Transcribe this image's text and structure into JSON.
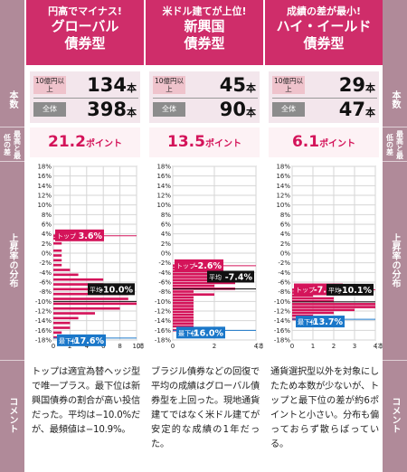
{
  "side_labels": {
    "left": [
      "本数",
      "最高と最低の差",
      "上昇率の分布",
      "コメント"
    ],
    "right": [
      "本数",
      "最高と最低の差",
      "上昇率の分布",
      "コメント"
    ]
  },
  "count_labels": {
    "over_1billion": "10億円以上",
    "all": "全体"
  },
  "unit_hon": "本",
  "unit_point": "ポイント",
  "columns": [
    {
      "headline": "円高でマイナス!",
      "title_line1": "グローバル",
      "title_line2": "債券型",
      "count_over": "134",
      "count_all": "398",
      "diff": "21.2",
      "comment": "トップは適宜為替ヘッジ型で唯一プラス。最下位は新興国債券の割合が高い投信だった。平均は−10.0%だが、最頻値は−10.9%。"
    },
    {
      "headline": "米ドル建てが上位!",
      "title_line1": "新興国",
      "title_line2": "債券型",
      "count_over": "45",
      "count_all": "90",
      "diff": "13.5",
      "comment": "ブラジル債券などの回復で平均の成績はグローバル債券型を上回った。現地通貨建てではなく米ドル建てが安定的な成績の1年だった。"
    },
    {
      "headline": "成績の差が最小!",
      "title_line1": "ハイ・イールド",
      "title_line2": "債券型",
      "count_over": "29",
      "count_all": "47",
      "diff": "6.1",
      "comment": "通貨選択型以外を対象にしたため本数が少ないが、トップと最下位の差が約6ポイントと小さい。分布も偏っておらず散らばっている。"
    }
  ],
  "chart_data": [
    {
      "type": "bar",
      "orientation": "horizontal",
      "ylim": [
        -18,
        18
      ],
      "yticks": [
        "18%",
        "16%",
        "14%",
        "12%",
        "10%",
        "8%",
        "6%",
        "4%",
        "2%",
        "0%",
        "-2%",
        "-4%",
        "-6%",
        "-8%",
        "-10%",
        "-12%",
        "-14%",
        "-16%",
        "-18%"
      ],
      "xlim": [
        0,
        10
      ],
      "xticks": [
        "0",
        "2",
        "4",
        "6",
        "8",
        "10"
      ],
      "xunit": "(本)",
      "bar_color": "#d4145a",
      "bins_pct": [
        3.6,
        3.0,
        2.0,
        0.5,
        -0.5,
        -1.5,
        -2.5,
        -3.5,
        -4.5,
        -5.5,
        -6.5,
        -7.5,
        -8.5,
        -9.5,
        -10.5,
        -11.5,
        -12.5,
        -13.5,
        -14.5,
        -15.5,
        -16.5,
        -17.5
      ],
      "counts": [
        1,
        1,
        1,
        1,
        1,
        1,
        1,
        2,
        3,
        6,
        6,
        8,
        9,
        9,
        10,
        8,
        5,
        3,
        2,
        2,
        1,
        1
      ],
      "annotations": [
        {
          "label": "トップ",
          "value": 3.6,
          "text": "3.6%",
          "style": "top"
        },
        {
          "label": "平均",
          "value": -10.0,
          "text": "-10.0%",
          "style": "avg"
        },
        {
          "label": "最下位",
          "value": -17.6,
          "text": "-17.6%",
          "style": "bottom"
        }
      ]
    },
    {
      "type": "bar",
      "orientation": "horizontal",
      "ylim": [
        -18,
        18
      ],
      "yticks": [
        "18%",
        "16%",
        "14%",
        "12%",
        "10%",
        "8%",
        "6%",
        "4%",
        "2%",
        "0%",
        "-2%",
        "-4%",
        "-6%",
        "-8%",
        "-10%",
        "-12%",
        "-14%",
        "-16%",
        "-18%"
      ],
      "xlim": [
        0,
        4
      ],
      "xticks": [
        "0",
        "2",
        "4"
      ],
      "xunit": "(本)",
      "bar_color": "#d4145a",
      "bins_pct": [
        -2.6,
        -3.2,
        -3.8,
        -4.4,
        -5.0,
        -5.6,
        -6.2,
        -6.8,
        -7.4,
        -8.0,
        -8.6,
        -9.2,
        -9.8,
        -10.4,
        -11.0,
        -11.6,
        -12.2,
        -12.8,
        -13.4,
        -14.0,
        -14.6,
        -15.2,
        -16.0
      ],
      "counts": [
        1,
        1,
        2,
        2,
        3,
        2,
        3,
        2,
        3,
        1,
        2,
        1,
        1,
        1,
        1,
        1,
        1,
        1,
        1,
        1,
        1,
        1,
        1
      ],
      "annotations": [
        {
          "label": "トップ",
          "value": -2.6,
          "text": "-2.6%",
          "style": "top"
        },
        {
          "label": "平均",
          "value": -7.4,
          "text": "-7.4%",
          "style": "avg"
        },
        {
          "label": "最下位",
          "value": -16.0,
          "text": "-16.0%",
          "style": "bottom"
        }
      ]
    },
    {
      "type": "bar",
      "orientation": "horizontal",
      "ylim": [
        -18,
        18
      ],
      "yticks": [
        "18%",
        "16%",
        "14%",
        "12%",
        "10%",
        "8%",
        "6%",
        "4%",
        "2%",
        "0%",
        "-2%",
        "-4%",
        "-6%",
        "-8%",
        "-10%",
        "-12%",
        "-14%",
        "-16%",
        "-18%"
      ],
      "xlim": [
        0,
        4
      ],
      "xticks": [
        "0",
        "1",
        "2",
        "3",
        "4"
      ],
      "xunit": "(本)",
      "bar_color": "#d4145a",
      "bins_pct": [
        -7.6,
        -8.2,
        -8.8,
        -9.4,
        -10.0,
        -10.6,
        -11.2,
        -11.8,
        -12.4,
        -13.0,
        -13.7
      ],
      "counts": [
        1,
        1,
        1,
        2,
        2,
        4,
        4,
        3,
        2,
        1,
        1
      ],
      "annotations": [
        {
          "label": "トップ",
          "value": -7.6,
          "text": "-7.6%",
          "style": "top"
        },
        {
          "label": "平均",
          "value": -10.1,
          "text": "-10.1%",
          "style": "avg"
        },
        {
          "label": "最下位",
          "value": -13.7,
          "text": "-13.7%",
          "style": "bottom"
        }
      ]
    }
  ]
}
